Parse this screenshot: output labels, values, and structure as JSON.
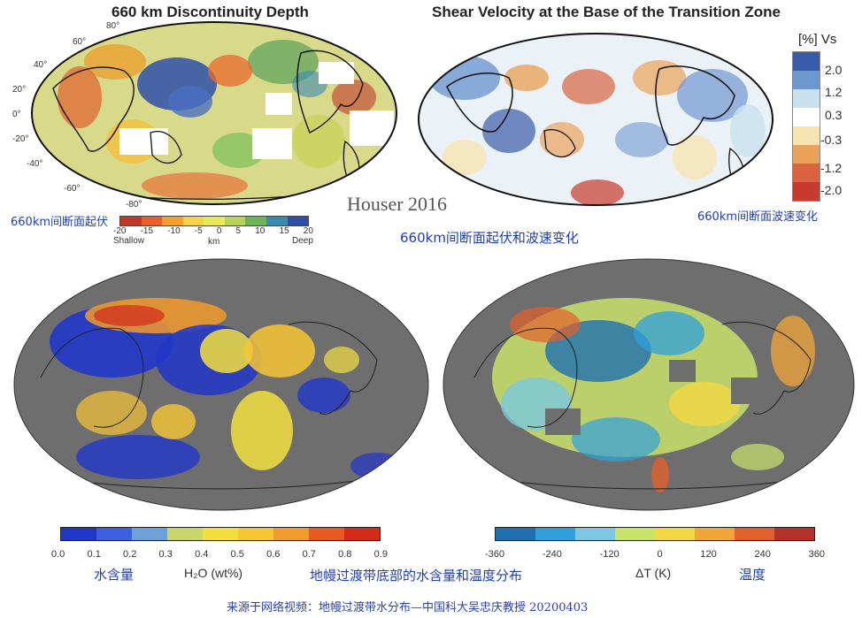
{
  "panel_depth": {
    "title": "660 km Discontinuity Depth",
    "lat_labels": [
      "80°",
      "60°",
      "40°",
      "20°",
      "0°",
      "-20°",
      "-40°",
      "-60°",
      "-80°"
    ],
    "colorbar": {
      "ticks": [
        "-20",
        "-15",
        "-10",
        "-5",
        "0",
        "5",
        "10",
        "15",
        "20"
      ],
      "left_label": "Shallow",
      "center_label": "km",
      "right_label": "Deep",
      "colors": [
        "#c0392b",
        "#e8602c",
        "#f2a030",
        "#f4d24a",
        "#e8e85a",
        "#b8d35a",
        "#6cb35a",
        "#3a8ab0",
        "#2e4fa8"
      ]
    },
    "caption": "660km间断面起伏"
  },
  "panel_velocity": {
    "title": "Shear Velocity at the Base of the Transition Zone",
    "legend_title": "[%] Vs",
    "legend_values": [
      "2.0",
      "1.2",
      "0.3",
      "-0.3",
      "-1.2",
      "-2.0"
    ],
    "legend_colors": [
      "#3a5ba8",
      "#6f97cf",
      "#c9e1ef",
      "#ffffff",
      "#f7e4b0",
      "#e9a25a",
      "#d9623f",
      "#c83a2e"
    ],
    "caption": "660km间断面波速变化"
  },
  "attribution": "Houser 2016",
  "top_caption": "660km间断面起伏和波速变化",
  "panel_water": {
    "colorbar": {
      "ticks": [
        "0.0",
        "0.1",
        "0.2",
        "0.3",
        "0.4",
        "0.5",
        "0.6",
        "0.7",
        "0.8",
        "0.9"
      ],
      "label": "H₂O (wt%)",
      "colors": [
        "#2236c8",
        "#3d5fe0",
        "#6fa0d8",
        "#c8d66a",
        "#f3e040",
        "#f7c535",
        "#f29a2d",
        "#ea5a20",
        "#d42a18"
      ]
    },
    "caption": "水含量"
  },
  "panel_temperature": {
    "colorbar": {
      "ticks": [
        "-360",
        "-240",
        "-120",
        "0",
        "120",
        "240",
        "360"
      ],
      "label": "ΔT (K)",
      "colors": [
        "#1e6fb0",
        "#2fa0dc",
        "#7cc8e0",
        "#c9e26a",
        "#f1d845",
        "#f2a63a",
        "#e2602c",
        "#b4302a"
      ]
    },
    "caption": "温度"
  },
  "bottom_caption": "地幔过渡带底部的水含量和温度分布",
  "credit": "来源于网络视频：地幔过渡带水分布—中国科大吴忠庆教授  20200403"
}
